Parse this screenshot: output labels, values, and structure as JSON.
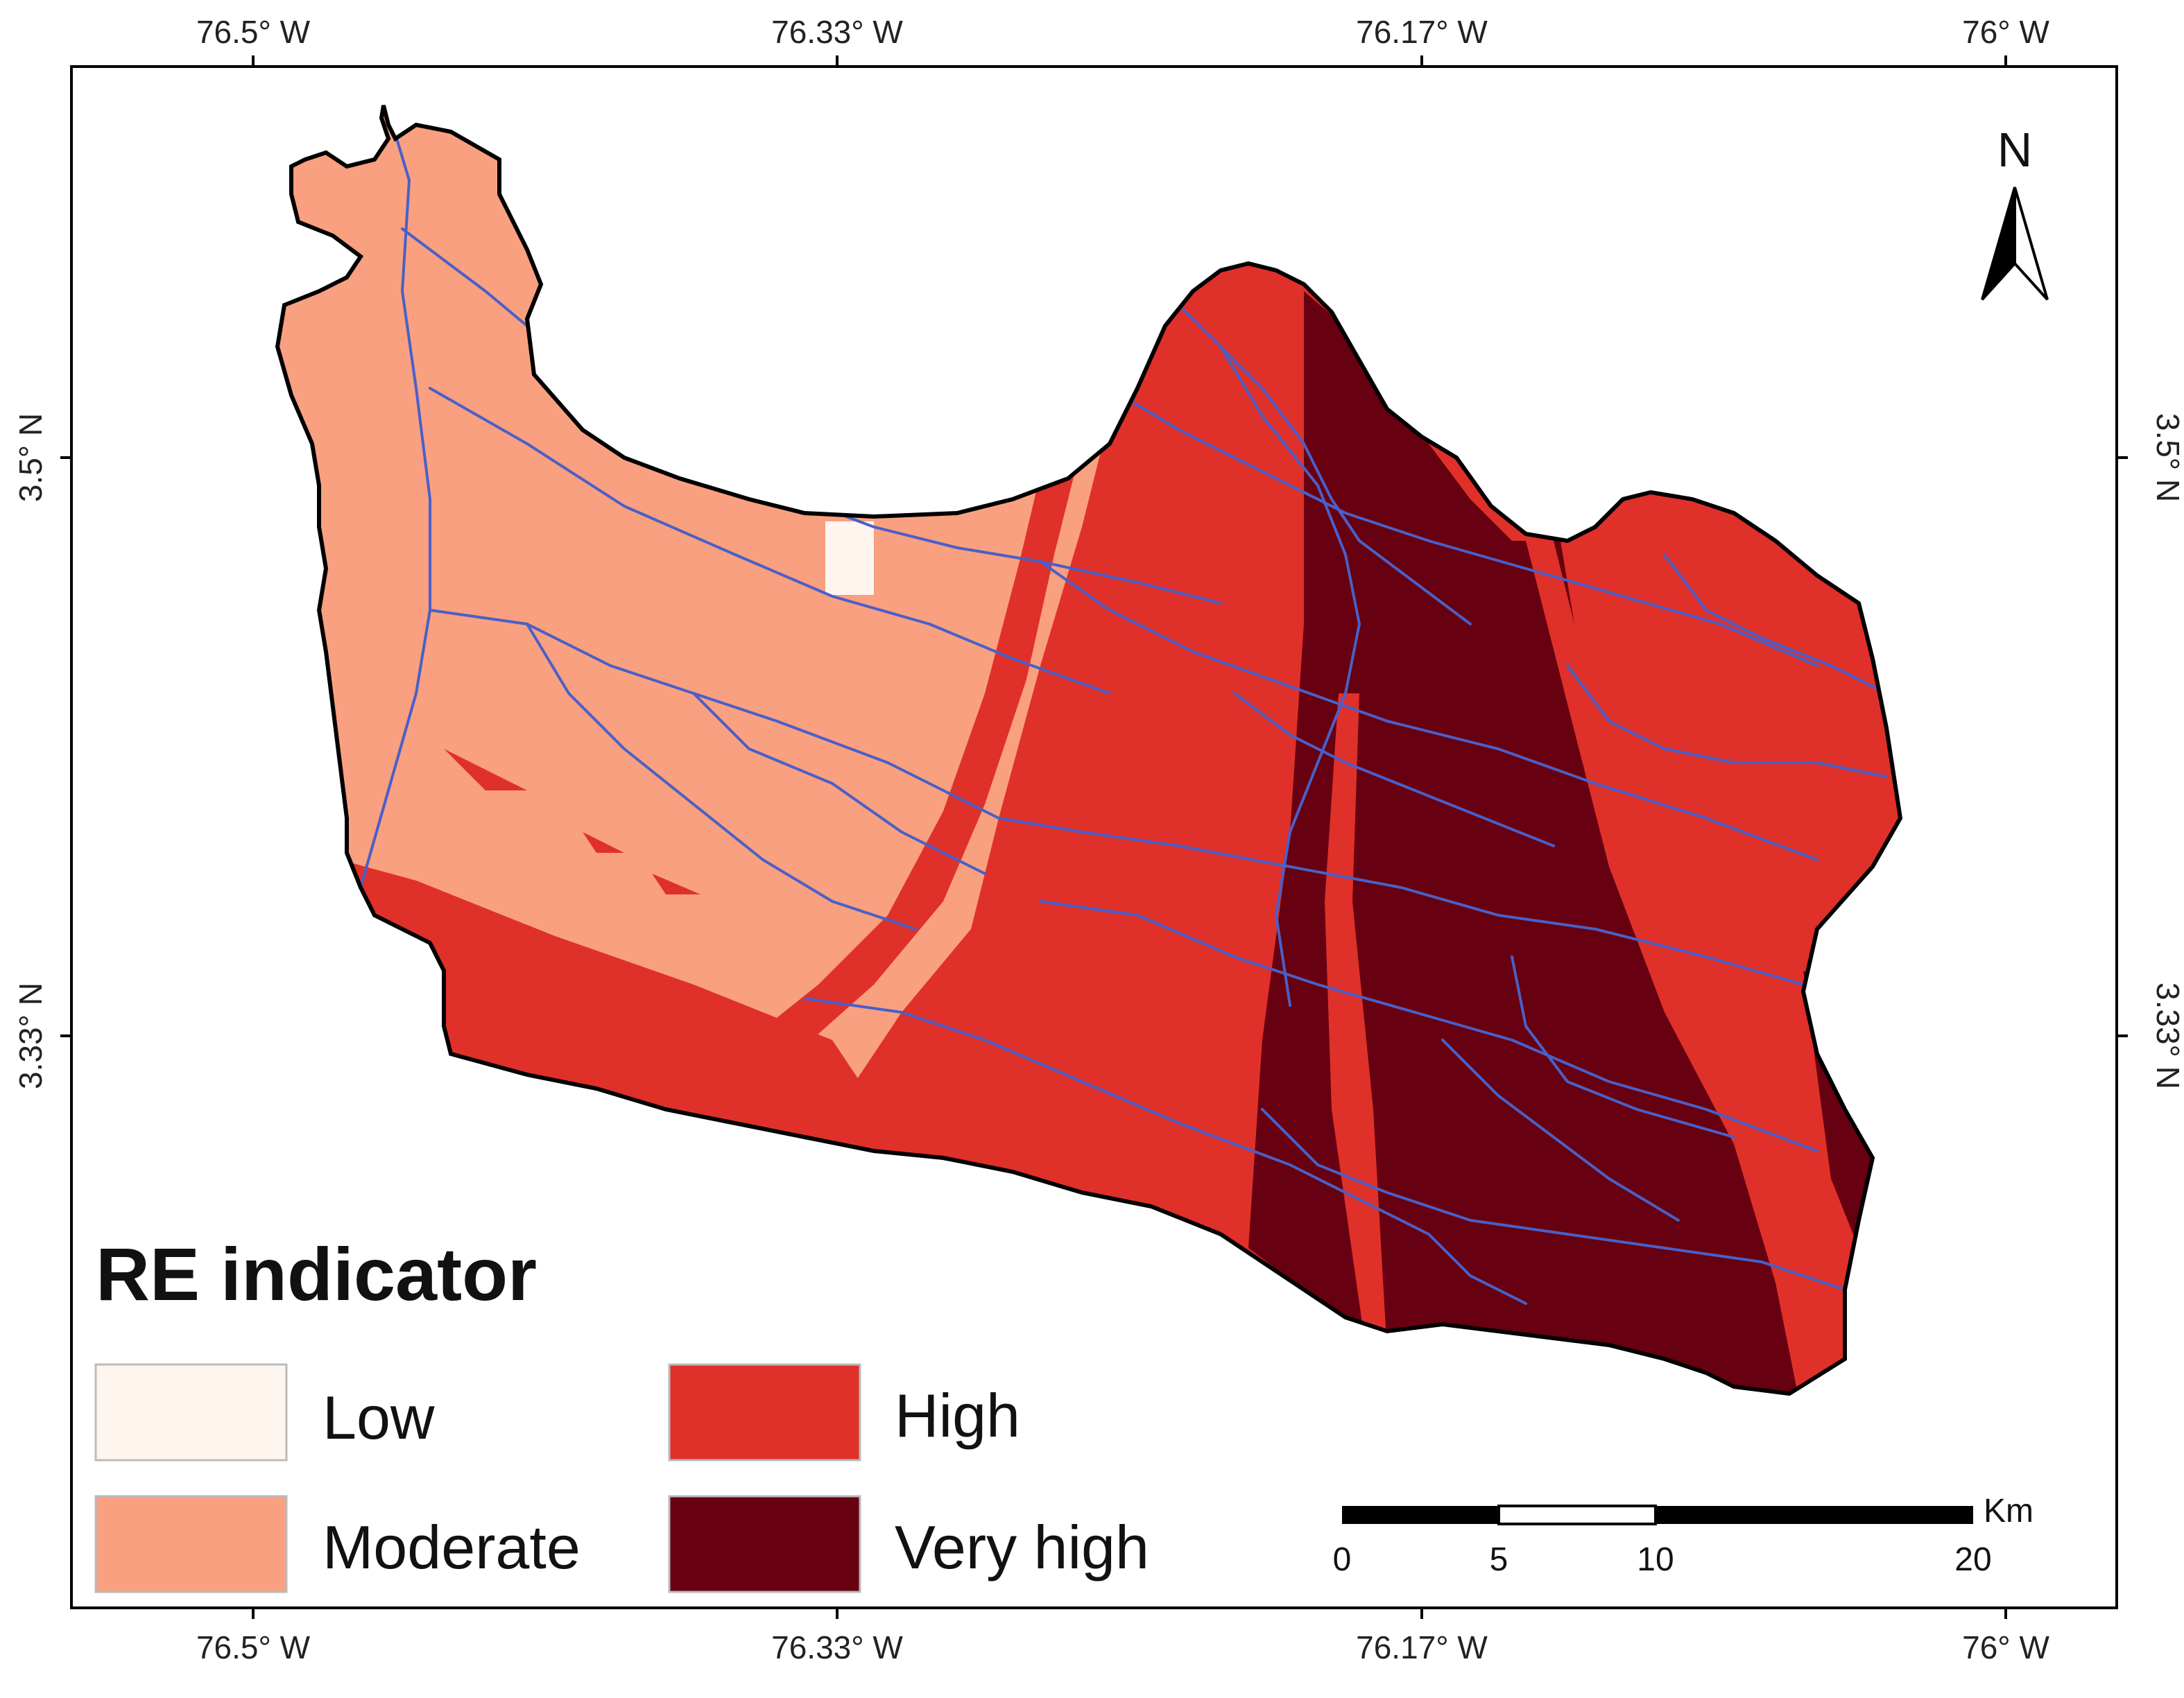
{
  "graticule": {
    "top_labels": [
      "76.5° W",
      "76.33° W",
      "76.17° W",
      "76° W"
    ],
    "bottom_labels": [
      "76.5° W",
      "76.33° W",
      "76.17° W",
      "76° W"
    ],
    "left_labels": [
      "3.5° N",
      "3.33° N"
    ],
    "right_labels": [
      "3.5° N",
      "3.33° N"
    ]
  },
  "legend": {
    "title": "RE indicator",
    "items": [
      {
        "label": "Low",
        "color": "#fff5ef"
      },
      {
        "label": "Moderate",
        "color": "#f8a07f"
      },
      {
        "label": "High",
        "color": "#e0302a"
      },
      {
        "label": "Very high",
        "color": "#670010"
      }
    ]
  },
  "scale_bar": {
    "unit": "Km",
    "ticks": [
      "0",
      "5",
      "10",
      "20"
    ]
  },
  "north_arrow": {
    "label": "N"
  },
  "colors": {
    "boundary": "#000000",
    "rivers": "#4a5fc8",
    "frame": "#000000"
  }
}
